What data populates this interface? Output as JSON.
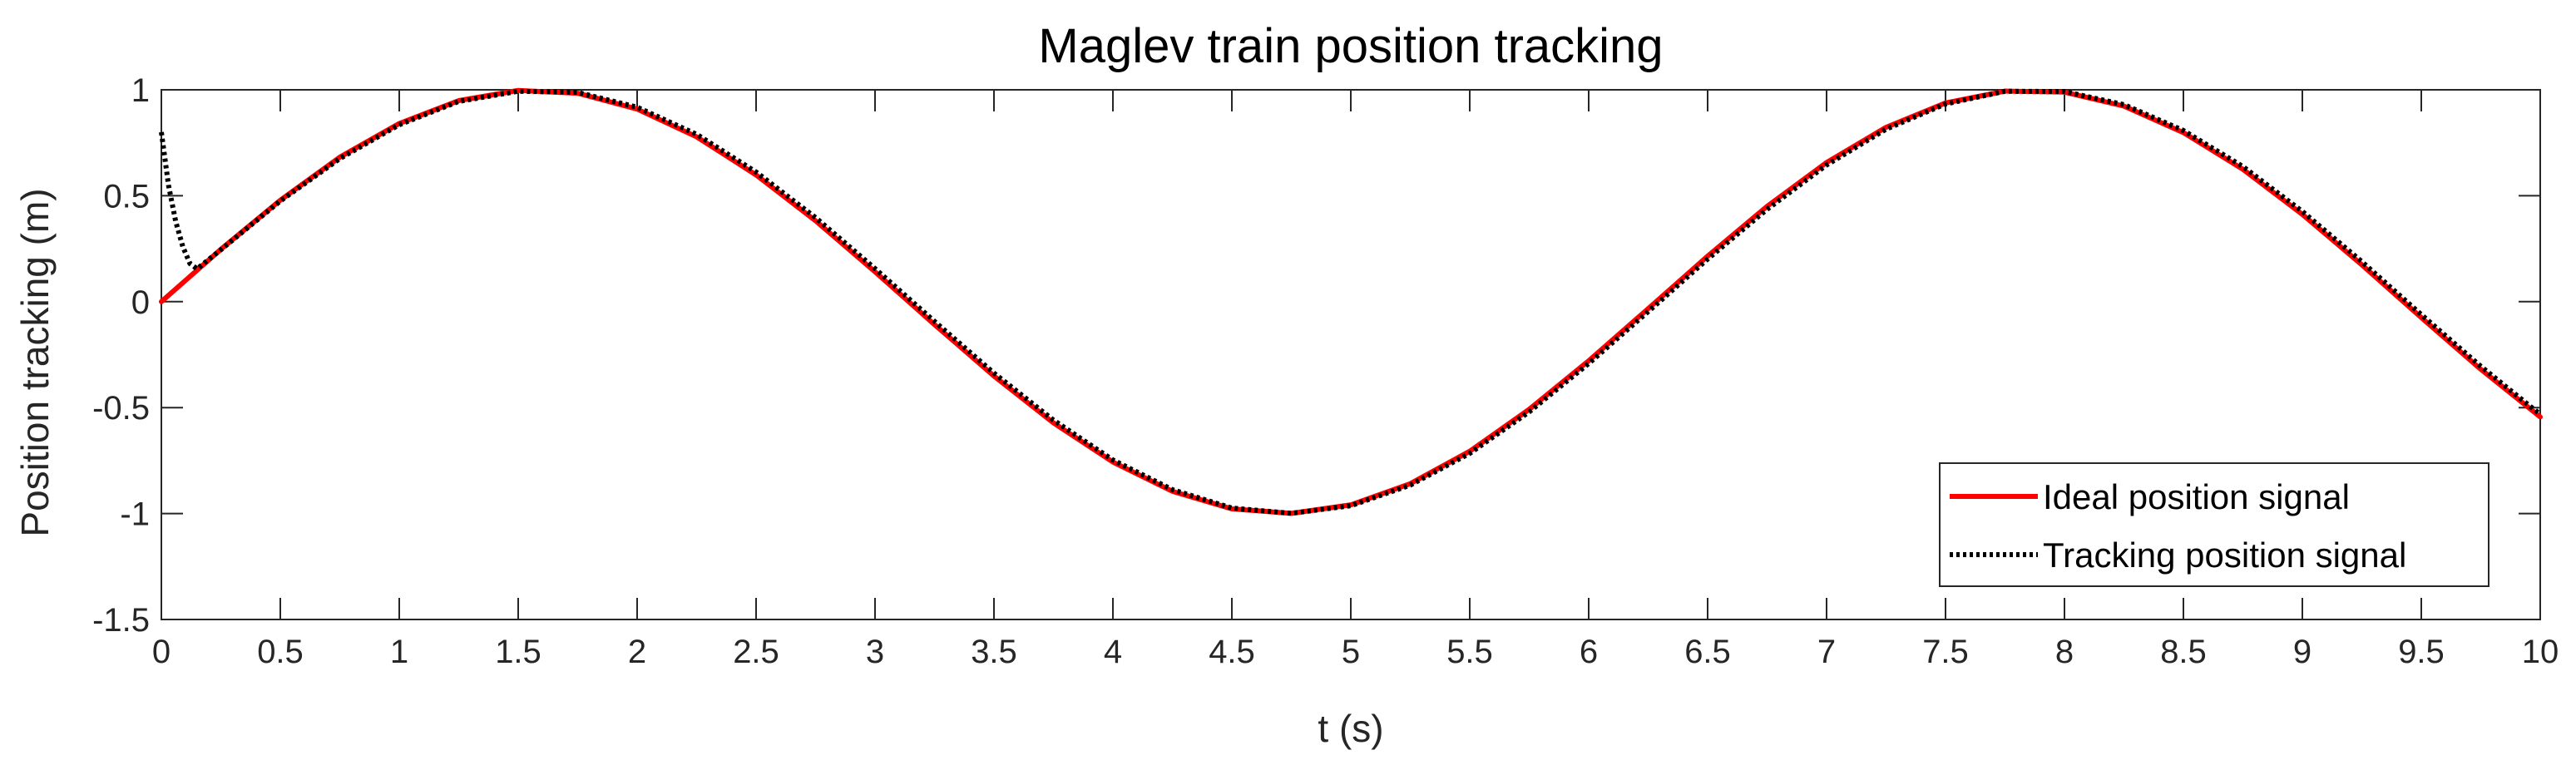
{
  "chart_data": {
    "type": "line",
    "title": "Maglev train position tracking",
    "xlabel": "t (s)",
    "ylabel": "Position tracking (m)",
    "xlim": [
      0,
      10
    ],
    "ylim": [
      -1.5,
      1
    ],
    "xticks": [
      0,
      0.5,
      1,
      1.5,
      2,
      2.5,
      3,
      3.5,
      4,
      4.5,
      5,
      5.5,
      6,
      6.5,
      7,
      7.5,
      8,
      8.5,
      9,
      9.5,
      10
    ],
    "xtick_labels": [
      "0",
      "0.5",
      "1",
      "1.5",
      "2",
      "2.5",
      "3",
      "3.5",
      "4",
      "4.5",
      "5",
      "5.5",
      "6",
      "6.5",
      "7",
      "7.5",
      "8",
      "8.5",
      "9",
      "9.5",
      "10"
    ],
    "yticks": [
      -1.5,
      -1,
      -0.5,
      0,
      0.5,
      1
    ],
    "ytick_labels": [
      "-1.5",
      "-1",
      "-0.5",
      "0",
      "0.5",
      "1"
    ],
    "grid": false,
    "legend_position": "bottom-right",
    "series": [
      {
        "name": "Ideal position signal",
        "color": "#ff0000",
        "style": "solid",
        "x": [
          0,
          0.25,
          0.5,
          0.75,
          1,
          1.25,
          1.5,
          1.75,
          2,
          2.25,
          2.5,
          2.75,
          3,
          3.25,
          3.5,
          3.75,
          4,
          4.25,
          4.5,
          4.75,
          5,
          5.25,
          5.5,
          5.75,
          6,
          6.25,
          6.5,
          6.75,
          7,
          7.25,
          7.5,
          7.75,
          8,
          8.25,
          8.5,
          8.75,
          9,
          9.25,
          9.5,
          9.75,
          10
        ],
        "y": [
          0,
          0.247,
          0.479,
          0.682,
          0.841,
          0.949,
          0.997,
          0.984,
          0.909,
          0.778,
          0.598,
          0.382,
          0.141,
          -0.108,
          -0.351,
          -0.572,
          -0.757,
          -0.895,
          -0.978,
          -0.999,
          -0.959,
          -0.859,
          -0.706,
          -0.508,
          -0.279,
          -0.033,
          0.215,
          0.45,
          0.657,
          0.823,
          0.938,
          0.994,
          0.989,
          0.923,
          0.798,
          0.625,
          0.412,
          0.174,
          -0.075,
          -0.319,
          -0.544
        ]
      },
      {
        "name": "Tracking position signal",
        "color": "#000000",
        "style": "dotted",
        "x": [
          0,
          0.03,
          0.06,
          0.09,
          0.12,
          0.15,
          0.2,
          0.25,
          0.5,
          0.75,
          1,
          1.25,
          1.5,
          1.75,
          2,
          2.25,
          2.5,
          2.75,
          3,
          3.25,
          3.5,
          3.75,
          4,
          4.25,
          4.5,
          4.75,
          5,
          5.25,
          5.5,
          5.75,
          6,
          6.25,
          6.5,
          6.75,
          7,
          7.25,
          7.5,
          7.75,
          8,
          8.25,
          8.5,
          8.75,
          9,
          9.25,
          9.5,
          9.75,
          10
        ],
        "y": [
          0.8,
          0.55,
          0.38,
          0.26,
          0.18,
          0.155,
          0.2,
          0.245,
          0.475,
          0.675,
          0.835,
          0.945,
          0.993,
          0.988,
          0.918,
          0.79,
          0.612,
          0.397,
          0.156,
          -0.093,
          -0.337,
          -0.559,
          -0.747,
          -0.887,
          -0.974,
          -0.999,
          -0.963,
          -0.866,
          -0.716,
          -0.52,
          -0.292,
          -0.047,
          0.201,
          0.436,
          0.645,
          0.814,
          0.933,
          0.993,
          0.992,
          0.93,
          0.808,
          0.638,
          0.426,
          0.189,
          -0.061,
          -0.305,
          -0.532
        ]
      }
    ]
  }
}
